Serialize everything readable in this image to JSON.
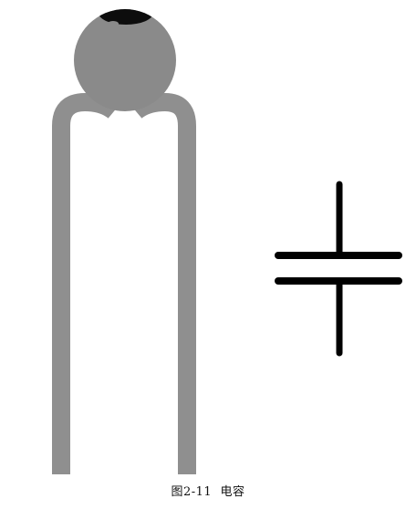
{
  "figure": {
    "caption": "图2-11  电容",
    "colors": {
      "component_body": "#8a8a8a",
      "component_leads": "#8f8f8f",
      "body_top_mark": "#0d0d0d",
      "symbol_stroke": "#000000",
      "background": "#ffffff"
    },
    "elements": {
      "component": "ceramic-disc-capacitor",
      "symbol": "capacitor-schematic-symbol"
    }
  }
}
